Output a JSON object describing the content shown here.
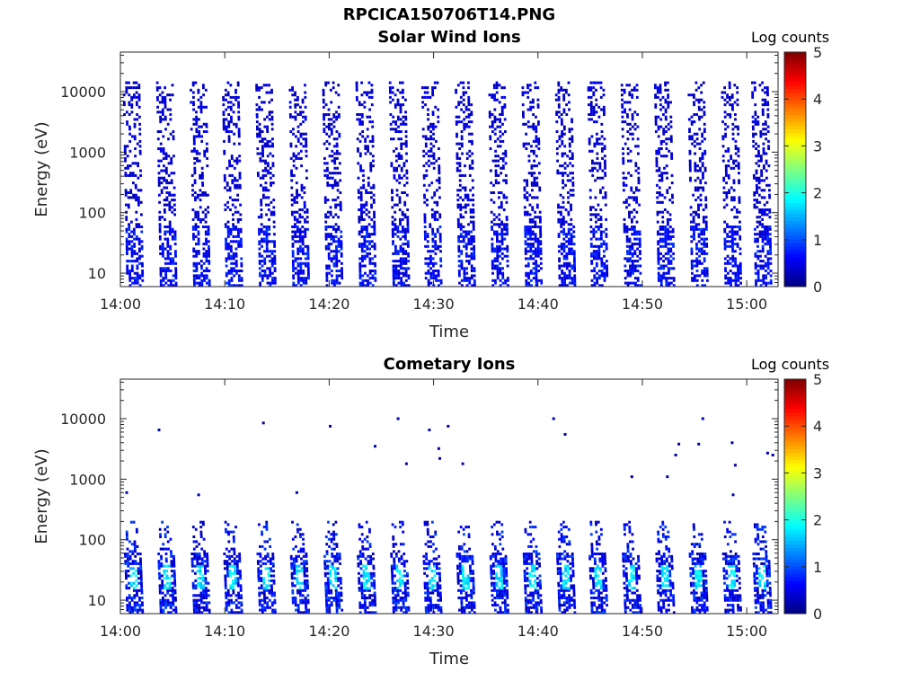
{
  "figure_title": "RPCICA150706T14.PNG",
  "panels": [
    {
      "title": "Solar Wind Ions",
      "ylabel": "Energy (eV)",
      "xlabel": "Time",
      "colorbar_label": "Log counts"
    },
    {
      "title": "Cometary Ions",
      "ylabel": "Energy (eV)",
      "xlabel": "Time",
      "colorbar_label": "Log counts"
    }
  ],
  "chart_data": [
    {
      "type": "heatmap",
      "title": "Solar Wind Ions",
      "xlabel": "Time",
      "ylabel": "Energy (eV)",
      "colorbar_label": "Log counts",
      "x_range_minutes_after_1400": [
        0,
        63
      ],
      "y_range_eV": [
        6,
        45000
      ],
      "y_scale": "log",
      "x_ticks": [
        "14:00",
        "14:10",
        "14:20",
        "14:30",
        "14:40",
        "14:50",
        "15:00"
      ],
      "y_ticks": [
        "10",
        "100",
        "1000",
        "10000"
      ],
      "colorbar_ticks": [
        "0",
        "1",
        "2",
        "3",
        "4",
        "5"
      ],
      "colorbar_range": [
        0,
        5
      ],
      "colormap": "jet",
      "sweep_times_minutes": [
        1.3,
        4.5,
        7.7,
        10.8,
        14.0,
        17.2,
        20.4,
        23.6,
        26.8,
        29.9,
        33.1,
        36.3,
        39.5,
        42.7,
        45.8,
        49.0,
        52.2,
        55.4,
        58.6,
        61.5
      ],
      "sweep_max_energy_eV": 15000,
      "typical_log_counts": [
        0.2,
        0.6
      ],
      "low_energy_log_counts": [
        0.3,
        0.9
      ]
    },
    {
      "type": "heatmap",
      "title": "Cometary Ions",
      "xlabel": "Time",
      "ylabel": "Energy (eV)",
      "colorbar_label": "Log counts",
      "x_range_minutes_after_1400": [
        0,
        63
      ],
      "y_range_eV": [
        6,
        45000
      ],
      "y_scale": "log",
      "x_ticks": [
        "14:00",
        "14:10",
        "14:20",
        "14:30",
        "14:40",
        "14:50",
        "15:00"
      ],
      "y_ticks": [
        "10",
        "100",
        "1000",
        "10000"
      ],
      "colorbar_ticks": [
        "0",
        "1",
        "2",
        "3",
        "4",
        "5"
      ],
      "colorbar_range": [
        0,
        5
      ],
      "colormap": "jet",
      "sweep_times_minutes": [
        1.3,
        4.5,
        7.7,
        10.8,
        14.0,
        17.2,
        20.4,
        23.6,
        26.8,
        29.9,
        33.1,
        36.3,
        39.5,
        42.7,
        45.8,
        49.0,
        52.2,
        55.4,
        58.6,
        61.5
      ],
      "sweep_max_energy_eV": 200,
      "peak_energy_range_eV": [
        15,
        40
      ],
      "peak_log_counts": [
        1.5,
        2.0
      ],
      "sparse_points": [
        {
          "t": 0.6,
          "e": 600
        },
        {
          "t": 3.7,
          "e": 6500
        },
        {
          "t": 7.5,
          "e": 550
        },
        {
          "t": 13.7,
          "e": 8500
        },
        {
          "t": 16.9,
          "e": 600
        },
        {
          "t": 20.1,
          "e": 7500
        },
        {
          "t": 24.4,
          "e": 3500
        },
        {
          "t": 26.6,
          "e": 10000
        },
        {
          "t": 27.4,
          "e": 1800
        },
        {
          "t": 29.6,
          "e": 6500
        },
        {
          "t": 30.5,
          "e": 3200
        },
        {
          "t": 30.6,
          "e": 2200
        },
        {
          "t": 31.4,
          "e": 7500
        },
        {
          "t": 32.8,
          "e": 1800
        },
        {
          "t": 41.5,
          "e": 10000
        },
        {
          "t": 42.6,
          "e": 5500
        },
        {
          "t": 49.0,
          "e": 1100
        },
        {
          "t": 52.4,
          "e": 1100
        },
        {
          "t": 53.2,
          "e": 2500
        },
        {
          "t": 53.5,
          "e": 3800
        },
        {
          "t": 55.4,
          "e": 3800
        },
        {
          "t": 55.8,
          "e": 10000
        },
        {
          "t": 58.6,
          "e": 4000
        },
        {
          "t": 58.9,
          "e": 1700
        },
        {
          "t": 58.7,
          "e": 550
        },
        {
          "t": 62.0,
          "e": 2700
        },
        {
          "t": 62.5,
          "e": 2500
        }
      ]
    }
  ]
}
